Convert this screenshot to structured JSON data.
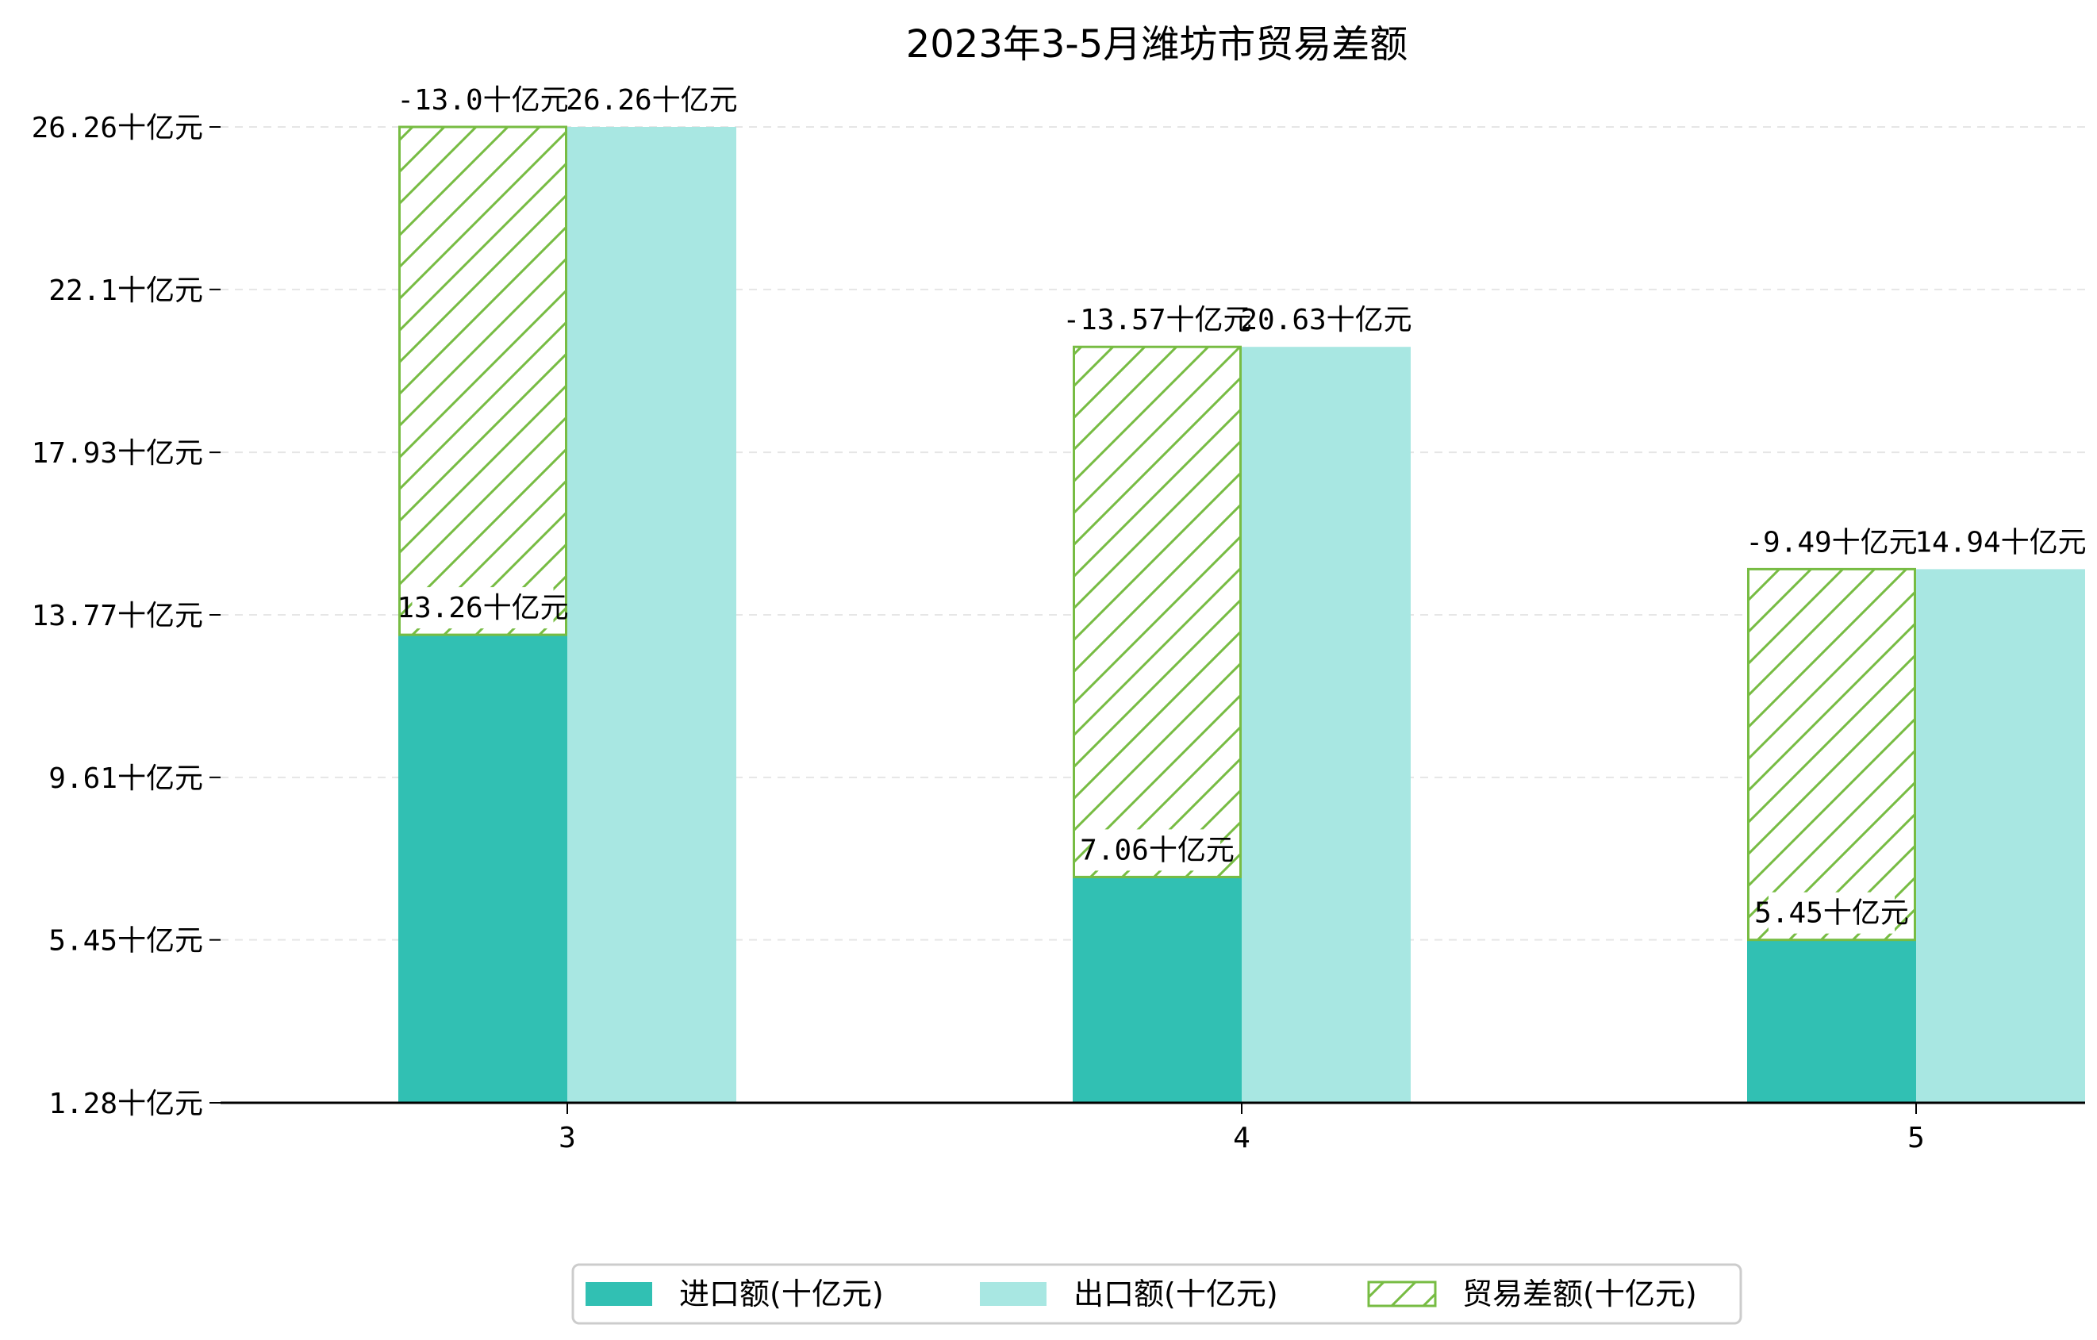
{
  "chart_data": {
    "type": "bar",
    "title": "2023年3-5月潍坊市贸易差额",
    "unit": "十亿元",
    "categories": [
      "3",
      "4",
      "5"
    ],
    "series": [
      {
        "name": "进口额(十亿元)",
        "values": [
          13.26,
          7.06,
          5.45
        ],
        "labels": [
          "13.26十亿元",
          "7.06十亿元",
          "5.45十亿元"
        ],
        "color": "#31c0b3"
      },
      {
        "name": "出口额(十亿元)",
        "values": [
          26.26,
          20.63,
          14.94
        ],
        "labels": [
          "26.26十亿元",
          "20.63十亿元",
          "14.94十亿元"
        ],
        "color": "#a8e7e2"
      },
      {
        "name": "贸易差额(十亿元)",
        "values": [
          -13.0,
          -13.57,
          -9.49
        ],
        "labels": [
          "-13.0十亿元",
          "-13.57十亿元",
          "-9.49十亿元"
        ],
        "color": "#77bc43",
        "hatch": true
      }
    ],
    "yticks": [
      1.28,
      5.45,
      9.61,
      13.77,
      17.93,
      22.1,
      26.26
    ],
    "ytick_labels": [
      "1.28十亿元",
      "5.45十亿元",
      "9.61十亿元",
      "13.77十亿元",
      "17.93十亿元",
      "22.1十亿元",
      "26.26十亿元"
    ],
    "ylim": [
      1.28,
      26.26
    ],
    "grid": true,
    "legend_position": "bottom-center"
  }
}
